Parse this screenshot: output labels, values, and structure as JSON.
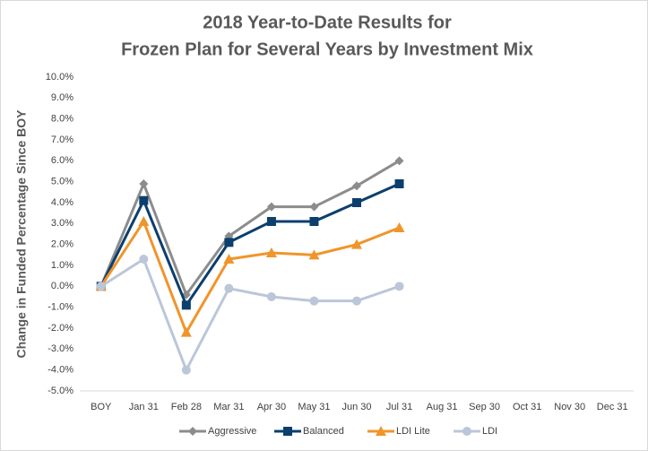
{
  "chart_data": {
    "type": "line",
    "title": [
      "2018 Year-to-Date Results for",
      "Frozen Plan for Several Years by Investment Mix"
    ],
    "y_label": "Change in Funded Percentage Since BOY",
    "categories": [
      "BOY",
      "Jan 31",
      "Feb 28",
      "Mar 31",
      "Apr 30",
      "May 31",
      "Jun 30",
      "Jul 31",
      "Aug 31",
      "Sep 30",
      "Oct 31",
      "Nov 30",
      "Dec 31"
    ],
    "series": [
      {
        "name": "Aggressive",
        "color": "#8c8c8c",
        "marker": "diamond",
        "values": [
          0,
          4.9,
          -0.4,
          2.4,
          3.8,
          3.8,
          4.8,
          6.0,
          null,
          null,
          null,
          null,
          null
        ]
      },
      {
        "name": "Balanced",
        "color": "#0b3f6e",
        "marker": "square",
        "values": [
          0,
          4.1,
          -0.9,
          2.1,
          3.1,
          3.1,
          4.0,
          4.9,
          null,
          null,
          null,
          null,
          null
        ]
      },
      {
        "name": "LDI Lite",
        "color": "#f0952a",
        "marker": "triangle",
        "values": [
          0,
          3.1,
          -2.2,
          1.3,
          1.6,
          1.5,
          2.0,
          2.8,
          null,
          null,
          null,
          null,
          null
        ]
      },
      {
        "name": "LDI",
        "color": "#bcc6d9",
        "marker": "circle",
        "values": [
          0,
          1.3,
          -4.0,
          -0.1,
          -0.5,
          -0.7,
          -0.7,
          0.0,
          null,
          null,
          null,
          null,
          null
        ]
      }
    ],
    "ylim": [
      -5,
      10
    ],
    "yticks": [
      {
        "value": -5,
        "label": "-5.0%"
      },
      {
        "value": -4,
        "label": "-4.0%"
      },
      {
        "value": -3,
        "label": "-3.0%"
      },
      {
        "value": -2,
        "label": "-2.0%"
      },
      {
        "value": -1,
        "label": "-1.0%"
      },
      {
        "value": 0,
        "label": "0.0%"
      },
      {
        "value": 1,
        "label": "1.0%"
      },
      {
        "value": 2,
        "label": "2.0%"
      },
      {
        "value": 3,
        "label": "3.0%"
      },
      {
        "value": 4,
        "label": "4.0%"
      },
      {
        "value": 5,
        "label": "5.0%"
      },
      {
        "value": 6,
        "label": "6.0%"
      },
      {
        "value": 7,
        "label": "7.0%"
      },
      {
        "value": 8,
        "label": "8.0%"
      },
      {
        "value": 9,
        "label": "9.0%"
      },
      {
        "value": 10,
        "label": "10.0%"
      }
    ],
    "grid": false,
    "legend": "bottom"
  }
}
